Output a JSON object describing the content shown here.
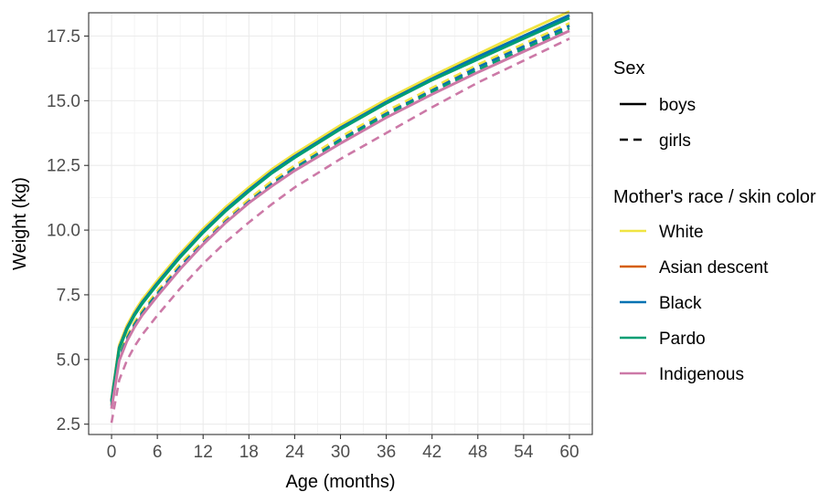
{
  "chart_data": {
    "type": "line",
    "xlabel": "Age (months)",
    "ylabel": "Weight (kg)",
    "xlim": [
      -3,
      63
    ],
    "ylim": [
      2.1,
      18.4
    ],
    "xticks": [
      0,
      6,
      12,
      18,
      24,
      30,
      36,
      42,
      48,
      54,
      60
    ],
    "yticks": [
      2.5,
      5.0,
      7.5,
      10.0,
      12.5,
      15.0,
      17.5
    ],
    "ytick_labels": [
      "2.5",
      "5.0",
      "7.5",
      "10.0",
      "12.5",
      "15.0",
      "17.5"
    ],
    "grid": true,
    "legend_position": "right",
    "x": [
      0,
      1,
      2,
      3,
      4,
      6,
      9,
      12,
      15,
      18,
      21,
      24,
      30,
      36,
      42,
      48,
      54,
      60
    ],
    "series": [
      {
        "name": "White",
        "sex": "boys",
        "color": "#F0E442",
        "values": [
          3.45,
          5.55,
          6.3,
          6.85,
          7.3,
          8.05,
          9.1,
          10.05,
          10.9,
          11.65,
          12.35,
          12.95,
          14.05,
          15.05,
          15.95,
          16.8,
          17.65,
          18.45
        ]
      },
      {
        "name": "White",
        "sex": "girls",
        "color": "#F0E442",
        "values": [
          3.3,
          5.2,
          5.9,
          6.45,
          6.9,
          7.65,
          8.7,
          9.6,
          10.45,
          11.2,
          11.9,
          12.5,
          13.6,
          14.6,
          15.5,
          16.4,
          17.2,
          18.0
        ]
      },
      {
        "name": "Asian descent",
        "sex": "boys",
        "color": "#D55E00",
        "values": [
          3.4,
          5.45,
          6.2,
          6.75,
          7.2,
          7.95,
          9.0,
          9.95,
          10.8,
          11.55,
          12.25,
          12.85,
          13.95,
          14.95,
          15.85,
          16.7,
          17.5,
          18.3
        ]
      },
      {
        "name": "Asian descent",
        "sex": "girls",
        "color": "#D55E00",
        "values": [
          3.25,
          5.1,
          5.8,
          6.35,
          6.8,
          7.55,
          8.6,
          9.5,
          10.35,
          11.1,
          11.8,
          12.4,
          13.5,
          14.5,
          15.4,
          16.3,
          17.1,
          17.9
        ]
      },
      {
        "name": "Black",
        "sex": "boys",
        "color": "#0072B2",
        "values": [
          3.4,
          5.45,
          6.2,
          6.75,
          7.2,
          7.95,
          9.0,
          9.95,
          10.8,
          11.55,
          12.25,
          12.85,
          13.95,
          14.95,
          15.85,
          16.7,
          17.5,
          18.3
        ]
      },
      {
        "name": "Black",
        "sex": "girls",
        "color": "#0072B2",
        "values": [
          3.25,
          5.1,
          5.8,
          6.35,
          6.8,
          7.55,
          8.6,
          9.5,
          10.35,
          11.1,
          11.8,
          12.4,
          13.5,
          14.5,
          15.4,
          16.3,
          17.1,
          17.9
        ]
      },
      {
        "name": "Pardo",
        "sex": "boys",
        "color": "#009E73",
        "values": [
          3.35,
          5.4,
          6.15,
          6.7,
          7.15,
          7.9,
          8.95,
          9.9,
          10.75,
          11.5,
          12.2,
          12.8,
          13.9,
          14.9,
          15.8,
          16.6,
          17.4,
          18.2
        ]
      },
      {
        "name": "Pardo",
        "sex": "girls",
        "color": "#009E73",
        "values": [
          3.2,
          5.05,
          5.75,
          6.3,
          6.75,
          7.5,
          8.5,
          9.45,
          10.3,
          11.05,
          11.75,
          12.35,
          13.45,
          14.45,
          15.35,
          16.2,
          17.0,
          17.8
        ]
      },
      {
        "name": "Indigenous",
        "sex": "boys",
        "color": "#CC79A7",
        "values": [
          3.1,
          4.95,
          5.7,
          6.25,
          6.7,
          7.45,
          8.5,
          9.45,
          10.3,
          11.05,
          11.7,
          12.3,
          13.35,
          14.35,
          15.25,
          16.1,
          16.9,
          17.7
        ]
      },
      {
        "name": "Indigenous",
        "sex": "girls",
        "color": "#CC79A7",
        "values": [
          2.55,
          4.2,
          4.95,
          5.5,
          5.95,
          6.7,
          7.75,
          8.7,
          9.55,
          10.3,
          11.0,
          11.65,
          12.75,
          13.75,
          14.75,
          15.7,
          16.55,
          17.4
        ]
      }
    ],
    "legend": {
      "sex_title": "Sex",
      "sex_items": [
        {
          "label": "boys",
          "style": "solid"
        },
        {
          "label": "girls",
          "style": "dashed"
        }
      ],
      "race_title": "Mother's race / skin color",
      "race_items": [
        {
          "label": "White",
          "color": "#F0E442"
        },
        {
          "label": "Asian descent",
          "color": "#D55E00"
        },
        {
          "label": "Black",
          "color": "#0072B2"
        },
        {
          "label": "Pardo",
          "color": "#009E73"
        },
        {
          "label": "Indigenous",
          "color": "#CC79A7"
        }
      ]
    }
  }
}
